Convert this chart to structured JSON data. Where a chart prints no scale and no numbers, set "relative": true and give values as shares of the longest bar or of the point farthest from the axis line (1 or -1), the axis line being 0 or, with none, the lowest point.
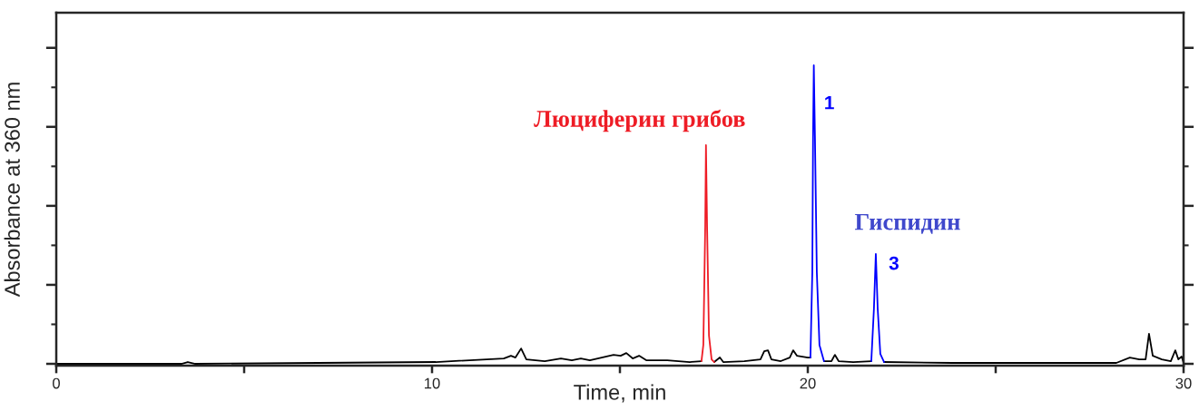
{
  "chart_data": {
    "type": "line",
    "relative": true,
    "xlabel": "Time, min",
    "ylabel": "Absorbance at 360 nm",
    "xlim": [
      0,
      30
    ],
    "xticks": [
      0,
      {
        "value": 5,
        "label": null
      },
      10,
      {
        "value": 15,
        "label": null
      },
      20,
      {
        "value": 25,
        "label": null
      },
      30
    ],
    "grid": false,
    "legend": false,
    "marker": "none",
    "line_style": "solid",
    "series": [
      {
        "color": "#000000",
        "x": [
          0,
          3.33,
          3.5,
          3.7,
          10.1,
          11.91,
          12.1,
          12.22,
          12.37,
          12.51,
          13.0,
          13.43,
          13.72,
          13.96,
          14.2,
          14.83,
          15.02,
          15.17,
          15.34,
          15.51,
          15.7,
          16.26,
          16.86,
          17.17,
          17.3,
          17.51,
          17.66,
          17.75,
          18.31,
          18.74,
          18.84,
          18.94,
          19.03,
          19.28,
          19.52,
          19.61,
          19.71,
          20.0,
          20.07,
          20.2,
          20.43,
          20.63,
          20.72,
          20.82,
          21.21,
          21.69,
          21.8,
          22.03,
          23.86,
          26.28,
          28.21,
          28.57,
          28.82,
          28.99,
          29.08,
          29.18,
          29.42,
          29.66,
          29.78,
          29.86,
          29.95,
          30.0
        ],
        "values": [
          0.006,
          0.006,
          0.012,
          0.006,
          0.012,
          0.024,
          0.033,
          0.027,
          0.057,
          0.021,
          0.015,
          0.024,
          0.018,
          0.024,
          0.018,
          0.036,
          0.033,
          0.042,
          0.024,
          0.033,
          0.018,
          0.018,
          0.012,
          0.015,
          null,
          0.012,
          0.027,
          0.012,
          0.015,
          0.021,
          0.048,
          0.051,
          0.021,
          0.015,
          0.027,
          0.051,
          0.033,
          0.027,
          0.027,
          null,
          0.015,
          0.015,
          0.036,
          0.015,
          0.012,
          0.015,
          null,
          0.012,
          0.009,
          0.009,
          0.009,
          0.027,
          0.021,
          0.021,
          0.106,
          0.033,
          0.021,
          0.015,
          0.051,
          0.021,
          0.03,
          0.009
        ]
      },
      {
        "color": "#ee1c25",
        "x": [
          17.17,
          17.22,
          17.27,
          17.29,
          17.32,
          17.37,
          17.44,
          17.51
        ],
        "values": [
          0.015,
          0.069,
          0.462,
          0.734,
          0.462,
          0.1,
          0.021,
          0.012
        ]
      },
      {
        "color": "#0000ff",
        "x": [
          20.07,
          20.12,
          20.14,
          20.16,
          20.19,
          20.24,
          20.31,
          20.43,
          21.0,
          21.69,
          21.76,
          21.81,
          21.86,
          21.93,
          22.03
        ],
        "values": [
          0.027,
          0.311,
          0.764,
          1,
          0.764,
          0.311,
          0.069,
          0.015,
          null,
          0.015,
          0.19,
          0.372,
          0.19,
          0.039,
          0.012
        ]
      }
    ],
    "annotations": [
      {
        "text": "Люциферин грибов",
        "x": 17.29,
        "y": 0.734
      },
      {
        "text": "1",
        "x": 20.16,
        "y": 1
      },
      {
        "text": "Гиспидин",
        "x": 21.81,
        "y": 0.372
      },
      {
        "text": "3",
        "x": 21.81,
        "y": 0.372
      }
    ]
  }
}
